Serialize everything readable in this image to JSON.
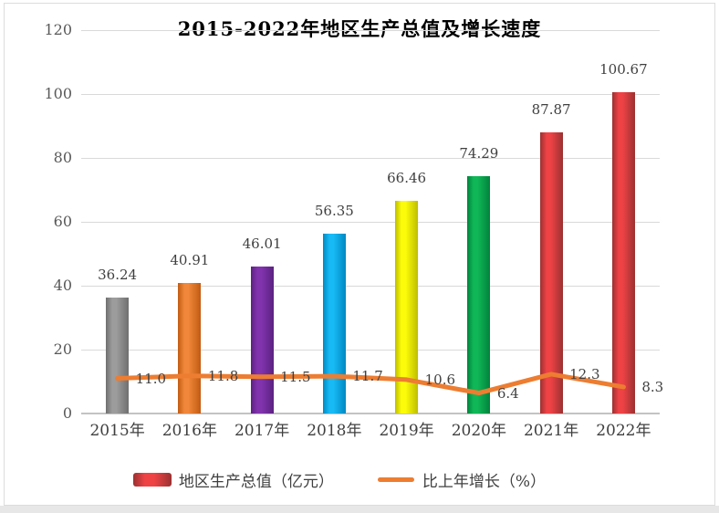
{
  "title": "2015-2022年地区生产总值及增长速度",
  "chart_data": {
    "type": "bar+line",
    "title": "2015-2022年地区生产总值及增长速度",
    "categories": [
      "2015年",
      "2016年",
      "2017年",
      "2018年",
      "2019年",
      "2020年",
      "2021年",
      "2022年"
    ],
    "series": [
      {
        "name": "地区生产总值（亿元）",
        "type": "bar",
        "values": [
          36.24,
          40.91,
          46.01,
          56.35,
          66.46,
          74.29,
          87.87,
          100.67
        ],
        "labels": [
          "36.24",
          "40.91",
          "46.01",
          "56.35",
          "66.46",
          "74.29",
          "87.87",
          "100.67"
        ],
        "bar_colors": [
          {
            "mid": "#9C9C9C",
            "edge": "#6F6F6F"
          },
          {
            "mid": "#F0873A",
            "edge": "#C25B12"
          },
          {
            "mid": "#8133AE",
            "edge": "#5B2280"
          },
          {
            "mid": "#18BAF5",
            "edge": "#0089C2"
          },
          {
            "mid": "#FCFC0A",
            "edge": "#BDBD00"
          },
          {
            "mid": "#10B757",
            "edge": "#00833C"
          },
          {
            "mid": "#EE4245",
            "edge": "#9B3131"
          },
          {
            "mid": "#EE4245",
            "edge": "#9B3131"
          }
        ]
      },
      {
        "name": "比上年增长（%）",
        "type": "line",
        "values": [
          11.0,
          11.8,
          11.5,
          11.7,
          10.6,
          6.4,
          12.3,
          8.3
        ],
        "labels": [
          "11.0",
          "11.8",
          "11.5",
          "11.7",
          "10.6",
          "6.4",
          "12.3",
          "8.3"
        ],
        "color": "#ED7D31"
      }
    ],
    "y_axis": {
      "min": 0,
      "max": 120,
      "step": 20,
      "tick_labels": [
        "0",
        "20",
        "40",
        "60",
        "80",
        "100",
        "120"
      ]
    },
    "grid": true,
    "legend_position": "bottom"
  },
  "legend": {
    "bar_label": "地区生产总值（亿元）",
    "line_label": "比上年增长（%）"
  },
  "colors": {
    "line": "#ED7D31",
    "grid": "#D9D9D9",
    "axis": "#C3C3C3",
    "tick_text": "#595959",
    "label_text": "#3F3F3F",
    "background": "#FFFFFF",
    "frame_border": "#DCDCDC",
    "bottom_strip": "#E7E7E7"
  }
}
